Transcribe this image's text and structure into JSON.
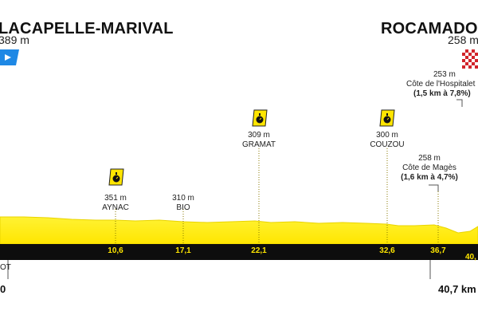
{
  "start": {
    "name": "LACAPELLE-MARIVAL",
    "altitude": "389 m",
    "km": "0",
    "note": "OT"
  },
  "finish": {
    "name": "ROCAMADOUR",
    "altitude": "258 m",
    "km": "40,7 km",
    "km_axis": "40,"
  },
  "points": [
    {
      "altitude": "351 m",
      "name": "AYNAC",
      "km": "10,6",
      "icon": "stopwatch-icon"
    },
    {
      "altitude": "310 m",
      "name": "BIO",
      "km": "17,1"
    },
    {
      "altitude": "309 m",
      "name": "GRAMAT",
      "km": "22,1",
      "icon": "stopwatch-icon"
    },
    {
      "altitude": "300 m",
      "name": "COUZOU",
      "km": "32,6",
      "icon": "stopwatch-icon"
    }
  ],
  "climbs": [
    {
      "altitude": "258 m",
      "name": "Côte de Magès",
      "detail": "(1,6 km à 4,7%)",
      "km": "36,7"
    },
    {
      "altitude": "253 m",
      "name": "Côte de l'Hospitalet",
      "detail": "(1,5 km à 7,8%)"
    }
  ],
  "colors": {
    "profile_yellow": "#ffef3a",
    "profile_edge": "#e9d400",
    "band_black": "#0d0d0d",
    "stopwatch_bg": "#ffe500",
    "flag_blue": "#1e88e5",
    "flag_red": "#d1242b"
  }
}
